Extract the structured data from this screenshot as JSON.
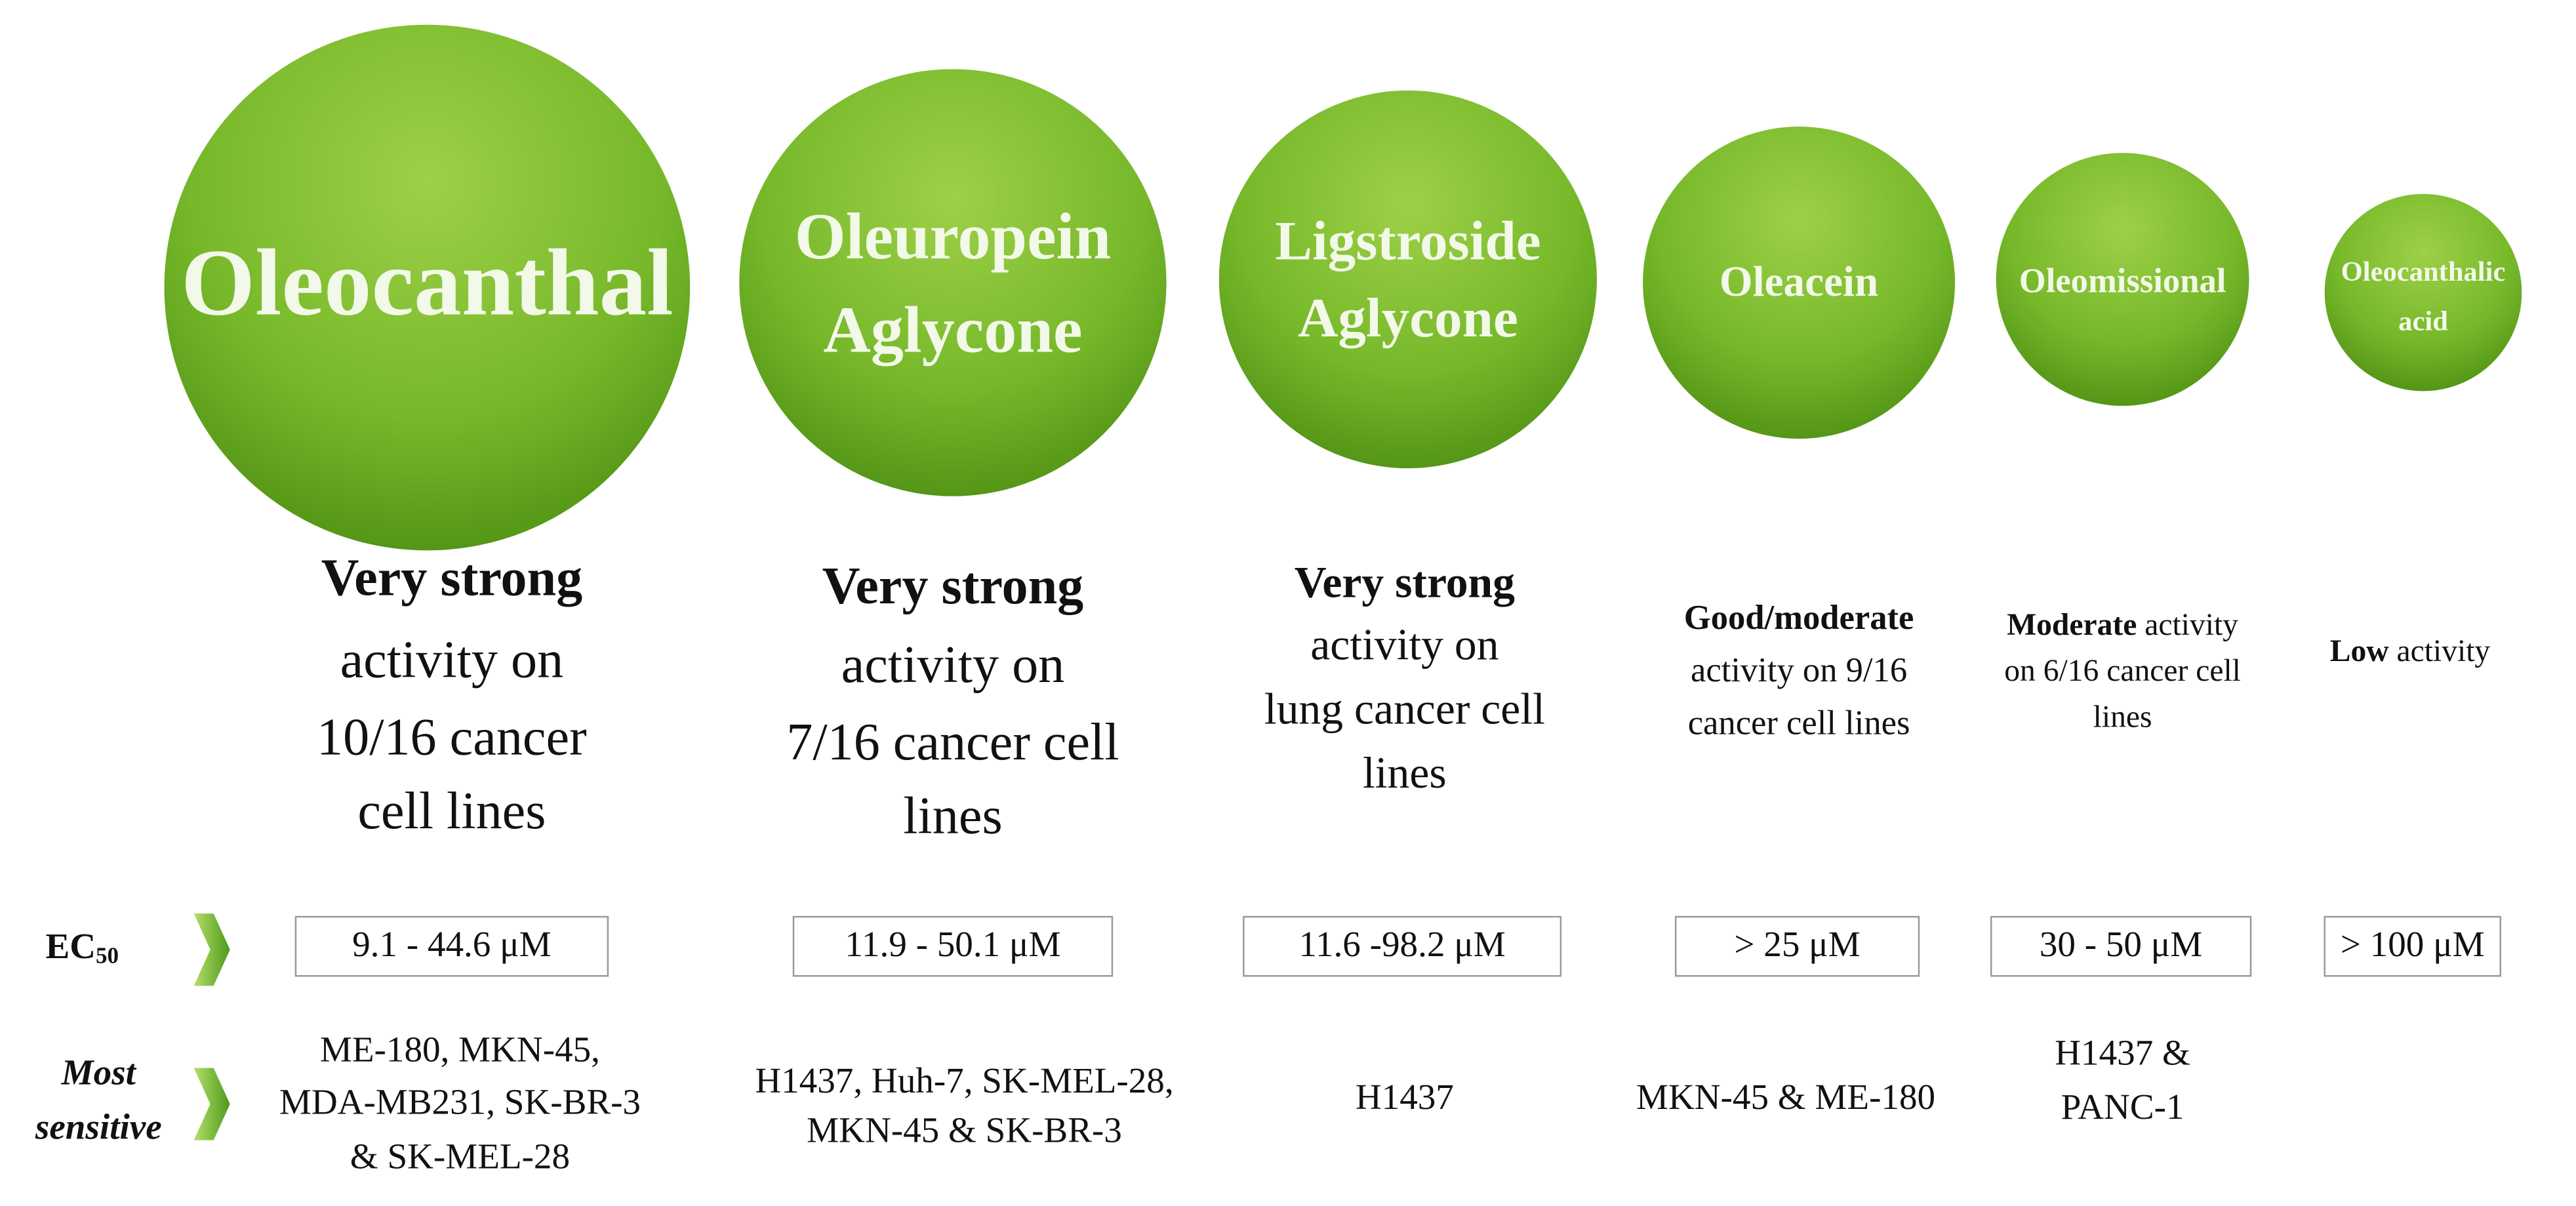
{
  "row_labels": {
    "ec50": {
      "main": "EC",
      "sub": "50"
    },
    "most_sensitive": [
      "Most",
      "sensitive"
    ]
  },
  "compounds": [
    {
      "name": [
        "Oleocanthal"
      ],
      "activity": [
        {
          "bold": "Very strong"
        },
        {
          "text": "activity on"
        },
        {
          "text": "10/16 cancer"
        },
        {
          "text": "cell lines"
        }
      ],
      "ec50": "9.1 - 44.6 μM",
      "most_sensitive": [
        "ME-180, MKN-45,",
        "MDA-MB231, SK-BR-3",
        "& SK-MEL-28"
      ]
    },
    {
      "name": [
        "Oleuropein",
        "Aglycone"
      ],
      "activity": [
        {
          "bold": "Very strong"
        },
        {
          "text": "activity on"
        },
        {
          "text": "7/16 cancer cell"
        },
        {
          "text": "lines"
        }
      ],
      "ec50": "11.9 - 50.1 μM",
      "most_sensitive": [
        "H1437, Huh-7, SK-MEL-28,",
        "MKN-45 & SK-BR-3"
      ]
    },
    {
      "name": [
        "Ligstroside",
        "Aglycone"
      ],
      "activity": [
        {
          "bold": "Very strong"
        },
        {
          "text": "activity on"
        },
        {
          "text": "lung cancer cell"
        },
        {
          "text": "lines"
        }
      ],
      "ec50": "11.6 -98.2 μM",
      "most_sensitive": [
        "H1437"
      ]
    },
    {
      "name": [
        "Oleacein"
      ],
      "activity": [
        {
          "bold": "Good/moderate"
        },
        {
          "text": "activity on 9/16"
        },
        {
          "text": "cancer cell lines"
        }
      ],
      "ec50": "> 25 μM",
      "most_sensitive": [
        "MKN-45 & ME-180"
      ]
    },
    {
      "name": [
        "Oleomissional"
      ],
      "activity": [
        {
          "bold": "Moderate",
          "text": "activity"
        },
        {
          "text": "on 6/16 cancer cell"
        },
        {
          "text": "lines"
        }
      ],
      "ec50": "30 - 50 μM",
      "most_sensitive": [
        "H1437 &",
        "PANC-1"
      ]
    },
    {
      "name": [
        "Oleocanthalic",
        "acid"
      ],
      "activity": [
        {
          "bold": "Low",
          "text": "activity"
        }
      ],
      "ec50": "> 100 μM",
      "most_sensitive": []
    }
  ]
}
